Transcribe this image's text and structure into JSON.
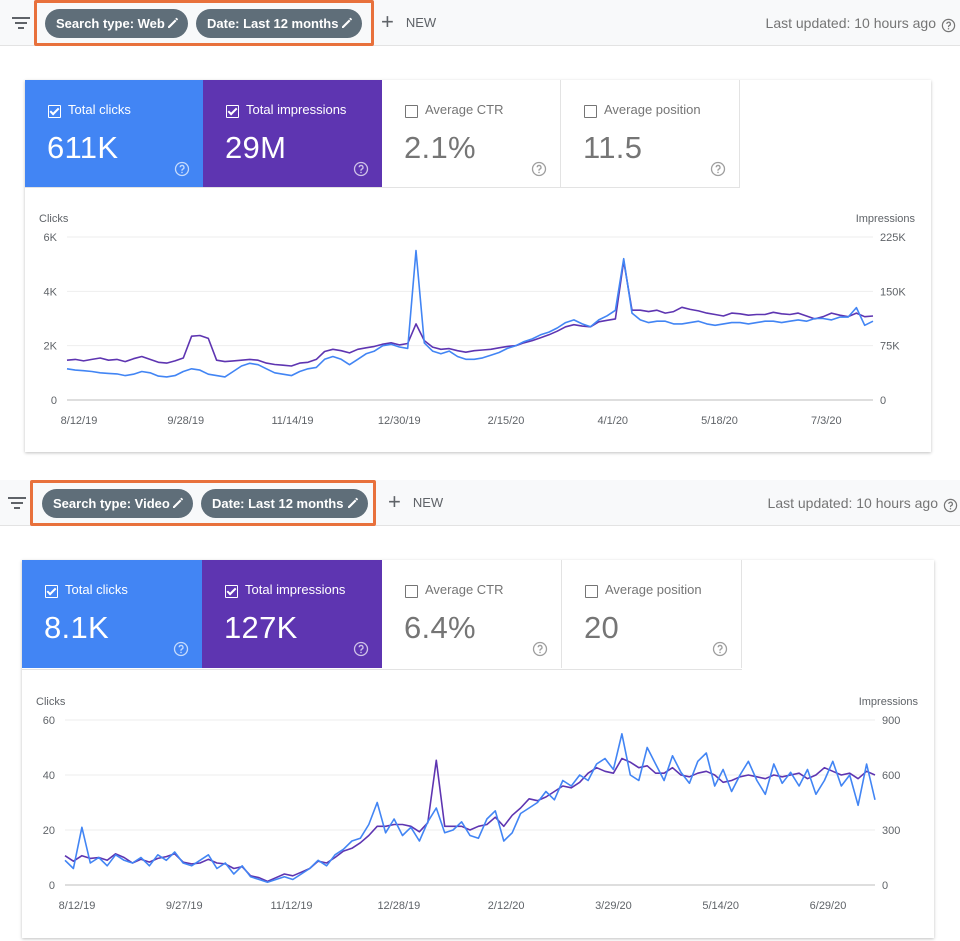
{
  "colors": {
    "clicks": "#4285f4",
    "impressions": "#5e35b1",
    "highlight": "#e8713c",
    "chip": "#5f6e79"
  },
  "panels": [
    {
      "filters": {
        "search_type": "Search type: Web",
        "date": "Date: Last 12 months",
        "new_label": "NEW",
        "last_updated": "Last updated: 10 hours ago"
      },
      "metrics": [
        {
          "label": "Total clicks",
          "value": "611K",
          "checked": true
        },
        {
          "label": "Total impressions",
          "value": "29M",
          "checked": true
        },
        {
          "label": "Average CTR",
          "value": "2.1%",
          "checked": false
        },
        {
          "label": "Average position",
          "value": "11.5",
          "checked": false
        }
      ]
    },
    {
      "filters": {
        "search_type": "Search type: Video",
        "date": "Date: Last 12 months",
        "new_label": "NEW",
        "last_updated": "Last updated: 10 hours ago"
      },
      "metrics": [
        {
          "label": "Total clicks",
          "value": "8.1K",
          "checked": true
        },
        {
          "label": "Total impressions",
          "value": "127K",
          "checked": true
        },
        {
          "label": "Average CTR",
          "value": "6.4%",
          "checked": false
        },
        {
          "label": "Average position",
          "value": "20",
          "checked": false
        }
      ]
    }
  ],
  "chart_data": [
    {
      "type": "line",
      "ylabel": "Clicks",
      "y2label": "Impressions",
      "ylim": [
        0,
        6000
      ],
      "y2lim": [
        0,
        225000
      ],
      "yticks": [
        "0",
        "2K",
        "4K",
        "6K"
      ],
      "y2ticks": [
        "0",
        "75K",
        "150K",
        "225K"
      ],
      "xticks": [
        "8/12/19",
        "9/28/19",
        "11/14/19",
        "12/30/19",
        "2/15/20",
        "4/1/20",
        "5/18/20",
        "7/3/20"
      ],
      "grid": true,
      "x_start": "8/12/19",
      "x_end": "8/24/20",
      "series": [
        {
          "name": "Total clicks",
          "axis": "left",
          "color": "#4285f4",
          "values": [
            1150,
            1100,
            1080,
            1050,
            1000,
            980,
            960,
            900,
            950,
            1050,
            1000,
            880,
            850,
            900,
            1050,
            1150,
            1100,
            950,
            900,
            850,
            1050,
            1250,
            1350,
            1300,
            1150,
            1000,
            950,
            900,
            1050,
            1150,
            1200,
            1500,
            1600,
            1500,
            1300,
            1500,
            1700,
            1800,
            2000,
            2050,
            1950,
            1900,
            5500,
            2100,
            1800,
            1700,
            1800,
            1600,
            1500,
            1500,
            1550,
            1650,
            1750,
            1900,
            2000,
            2150,
            2250,
            2400,
            2500,
            2650,
            2850,
            2950,
            2800,
            2700,
            2950,
            3100,
            3300,
            5200,
            3200,
            2950,
            2850,
            2900,
            2900,
            2800,
            2800,
            2850,
            2900,
            2800,
            2750,
            2800,
            2850,
            2850,
            2800,
            2850,
            2900,
            2900,
            2850,
            2900,
            2950,
            2900,
            3000,
            3000,
            2950,
            3050,
            3050,
            3400,
            2750,
            2900
          ]
        },
        {
          "name": "Total impressions",
          "axis": "right",
          "color": "#5e35b1",
          "values": [
            55000,
            56000,
            54000,
            56000,
            58000,
            55000,
            56000,
            53000,
            57000,
            60000,
            56000,
            52000,
            51000,
            54000,
            58000,
            88000,
            89000,
            85000,
            55000,
            53000,
            54000,
            55000,
            56000,
            55000,
            51000,
            49000,
            48000,
            47000,
            51000,
            52000,
            56000,
            67000,
            70000,
            68000,
            65000,
            70000,
            72000,
            74000,
            77000,
            79000,
            76000,
            78000,
            105000,
            82000,
            73000,
            70000,
            71000,
            68000,
            66000,
            68000,
            69000,
            70000,
            72000,
            74000,
            75000,
            79000,
            82000,
            86000,
            90000,
            95000,
            101000,
            104000,
            102000,
            101000,
            108000,
            110000,
            112000,
            192000,
            124000,
            124000,
            122000,
            124000,
            120000,
            122000,
            128000,
            125000,
            123000,
            120000,
            118000,
            116000,
            120000,
            119000,
            117000,
            118000,
            118000,
            121000,
            119000,
            118000,
            120000,
            116000,
            112000,
            115000,
            120000,
            117000,
            115000,
            120000,
            115000,
            116000
          ]
        }
      ]
    },
    {
      "type": "line",
      "ylabel": "Clicks",
      "y2label": "Impressions",
      "ylim": [
        0,
        60
      ],
      "y2lim": [
        0,
        900
      ],
      "yticks": [
        "0",
        "20",
        "40",
        "60"
      ],
      "y2ticks": [
        "0",
        "300",
        "600",
        "900"
      ],
      "xticks": [
        "8/12/19",
        "9/27/19",
        "11/12/19",
        "12/28/19",
        "2/12/20",
        "3/29/20",
        "5/14/20",
        "6/29/20"
      ],
      "grid": true,
      "x_start": "8/12/19",
      "x_end": "8/24/20",
      "series": [
        {
          "name": "Total clicks",
          "axis": "left",
          "color": "#4285f4",
          "values": [
            9,
            6,
            21,
            8,
            10,
            7,
            11,
            9,
            8,
            10,
            7,
            11,
            9,
            12,
            8,
            7,
            9,
            11,
            6,
            8,
            4,
            7,
            3,
            2,
            1,
            2,
            3,
            2,
            4,
            6,
            9,
            7,
            11,
            13,
            16,
            17,
            22,
            30,
            19,
            24,
            18,
            21,
            16,
            23,
            28,
            19,
            20,
            23,
            18,
            17,
            24,
            27,
            16,
            19,
            26,
            28,
            30,
            34,
            31,
            38,
            36,
            40,
            38,
            44,
            46,
            42,
            55,
            40,
            38,
            50,
            44,
            38,
            47,
            41,
            37,
            45,
            48,
            36,
            42,
            34,
            40,
            45,
            38,
            33,
            44,
            37,
            41,
            36,
            42,
            33,
            38,
            45,
            36,
            40,
            29,
            44,
            31
          ]
        },
        {
          "name": "Total impressions",
          "axis": "right",
          "color": "#5e35b1",
          "values": [
            160,
            130,
            160,
            145,
            150,
            135,
            170,
            150,
            120,
            140,
            125,
            145,
            155,
            170,
            125,
            115,
            120,
            140,
            120,
            115,
            90,
            100,
            50,
            40,
            20,
            40,
            60,
            50,
            70,
            90,
            130,
            120,
            150,
            185,
            200,
            230,
            270,
            320,
            320,
            330,
            330,
            320,
            290,
            340,
            680,
            320,
            320,
            320,
            300,
            320,
            330,
            370,
            320,
            380,
            420,
            470,
            460,
            480,
            510,
            540,
            530,
            560,
            610,
            640,
            620,
            610,
            690,
            670,
            640,
            650,
            610,
            610,
            640,
            600,
            590,
            610,
            620,
            600,
            560,
            570,
            590,
            600,
            590,
            580,
            600,
            590,
            600,
            610,
            580,
            600,
            640,
            620,
            600,
            610,
            580,
            620,
            600
          ]
        }
      ]
    }
  ]
}
